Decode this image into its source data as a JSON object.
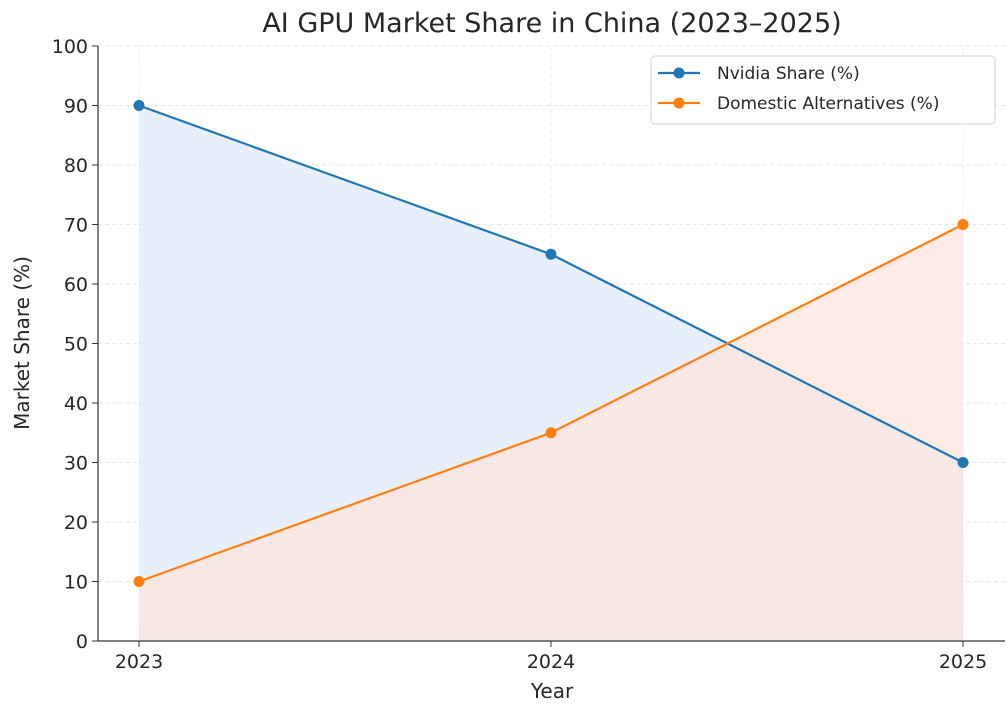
{
  "chart_data": {
    "type": "line",
    "title": "AI GPU Market Share in China (2023–2025)",
    "xlabel": "Year",
    "ylabel": "Market Share (%)",
    "categories": [
      "2023",
      "2024",
      "2025"
    ],
    "ylim": [
      0,
      100
    ],
    "yticks": [
      "0",
      "10",
      "20",
      "30",
      "40",
      "50",
      "60",
      "70",
      "80",
      "90",
      "100"
    ],
    "grid": true,
    "legend_position": "top-right",
    "series": [
      {
        "name": "Nvidia Share (%)",
        "values": [
          90,
          65,
          30
        ],
        "color": "#1f77b4",
        "fill": "#dde9f8"
      },
      {
        "name": "Domestic Alternatives (%)",
        "values": [
          10,
          35,
          70
        ],
        "color": "#ff7f0e",
        "fill": "#fde3dc"
      }
    ]
  }
}
